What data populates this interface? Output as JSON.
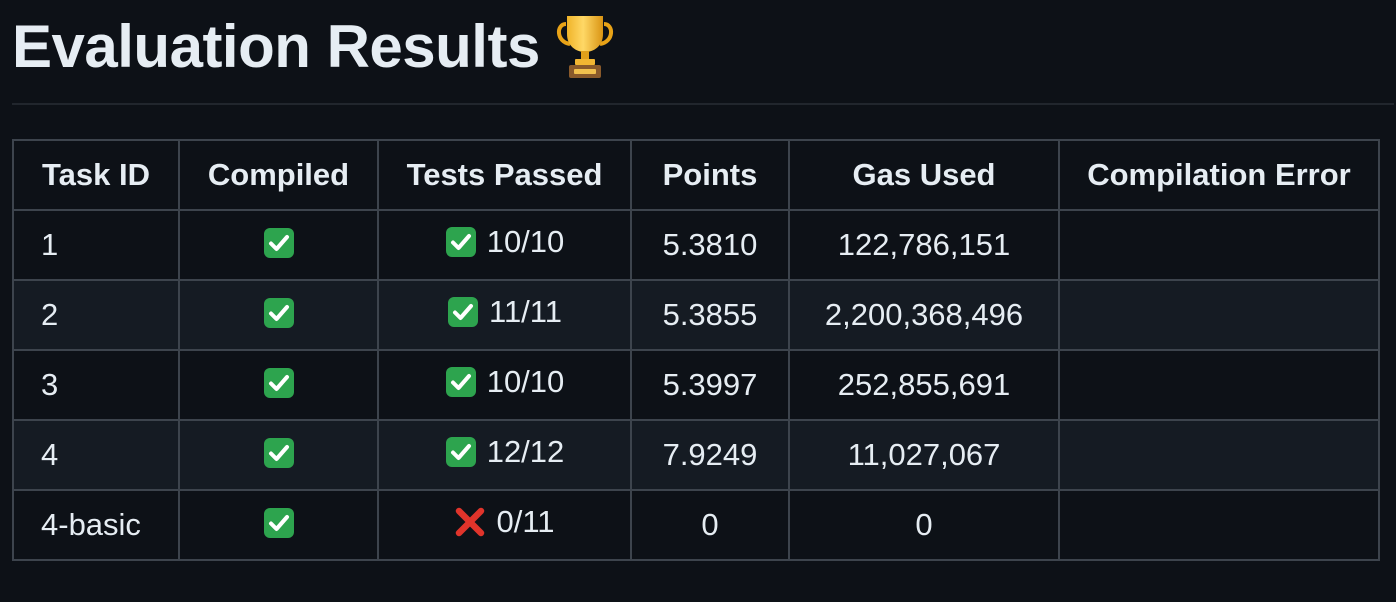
{
  "page": {
    "title": "Evaluation Results",
    "title_icon": "trophy-icon"
  },
  "colors": {
    "background": "#0d1117",
    "text": "#e6edf3",
    "border": "#3d444d",
    "row_alt": "#151b23",
    "check_green": "#2da44e",
    "cross_red": "#e0342b"
  },
  "table": {
    "headers": [
      "Task ID",
      "Compiled",
      "Tests Passed",
      "Points",
      "Gas Used",
      "Compilation Error"
    ],
    "rows": [
      {
        "task_id": "1",
        "compiled": "check-icon",
        "tests_icon": "check-icon",
        "tests": "10/10",
        "points": "5.3810",
        "gas": "122,786,151",
        "error": ""
      },
      {
        "task_id": "2",
        "compiled": "check-icon",
        "tests_icon": "check-icon",
        "tests": "11/11",
        "points": "5.3855",
        "gas": "2,200,368,496",
        "error": ""
      },
      {
        "task_id": "3",
        "compiled": "check-icon",
        "tests_icon": "check-icon",
        "tests": "10/10",
        "points": "5.3997",
        "gas": "252,855,691",
        "error": ""
      },
      {
        "task_id": "4",
        "compiled": "check-icon",
        "tests_icon": "check-icon",
        "tests": "12/12",
        "points": "7.9249",
        "gas": "11,027,067",
        "error": ""
      },
      {
        "task_id": "4-basic",
        "compiled": "check-icon",
        "tests_icon": "cross-icon",
        "tests": "0/11",
        "points": "0",
        "gas": "0",
        "error": ""
      }
    ]
  }
}
